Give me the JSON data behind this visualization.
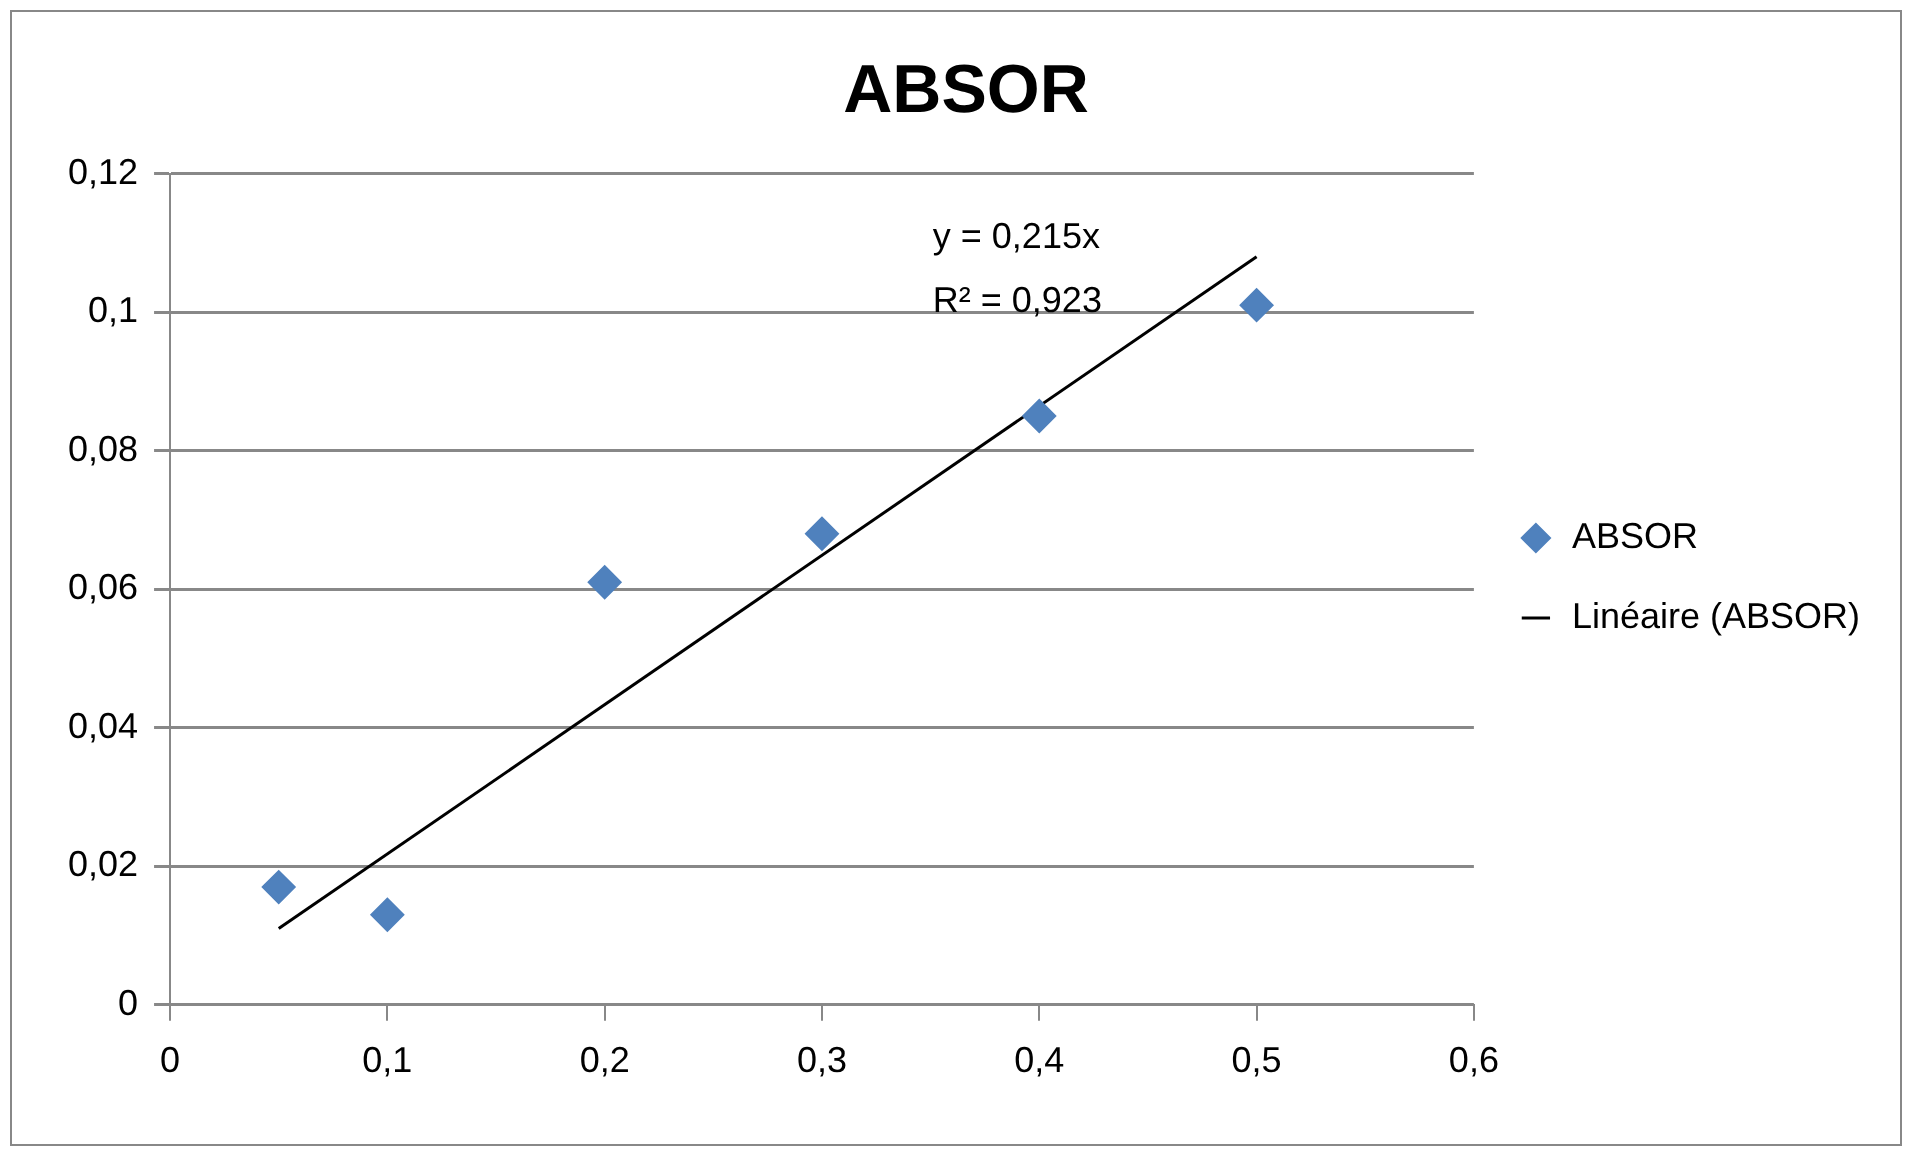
{
  "chart_data": {
    "type": "scatter",
    "title": "ABSOR",
    "series": [
      {
        "name": "ABSOR",
        "type": "scatter",
        "color": "#4f81bd",
        "marker": "diamond",
        "x": [
          0.05,
          0.1,
          0.2,
          0.3,
          0.4,
          0.5
        ],
        "values": [
          0.017,
          0.013,
          0.061,
          0.068,
          0.085,
          0.101
        ]
      },
      {
        "name": "Linéaire (ABSOR)",
        "type": "line",
        "color": "#000000",
        "marker": "none",
        "x": [
          0.05,
          0.5
        ],
        "values": [
          0.011,
          0.108
        ]
      }
    ],
    "xlim": [
      0,
      0.6
    ],
    "xticks": [
      0,
      {
        "value": 0.1,
        "label": "0,1"
      },
      {
        "value": 0.2,
        "label": "0,2"
      },
      {
        "value": 0.3,
        "label": "0,3"
      },
      {
        "value": 0.4,
        "label": "0,4"
      },
      {
        "value": 0.5,
        "label": "0,5"
      },
      {
        "value": 0.6,
        "label": "0,6"
      }
    ],
    "ylim": [
      0,
      0.12
    ],
    "yticks": [
      0,
      {
        "value": 0.02,
        "label": "0,02"
      },
      {
        "value": 0.04,
        "label": "0,04"
      },
      {
        "value": 0.06,
        "label": "0,06"
      },
      {
        "value": 0.08,
        "label": "0,08"
      },
      {
        "value": 0.1,
        "label": "0,1"
      },
      {
        "value": 0.12,
        "label": "0,12"
      }
    ],
    "grid": "y",
    "legend": "right",
    "annotations": [
      "y = 0,215x",
      "R² = 0,923"
    ]
  }
}
